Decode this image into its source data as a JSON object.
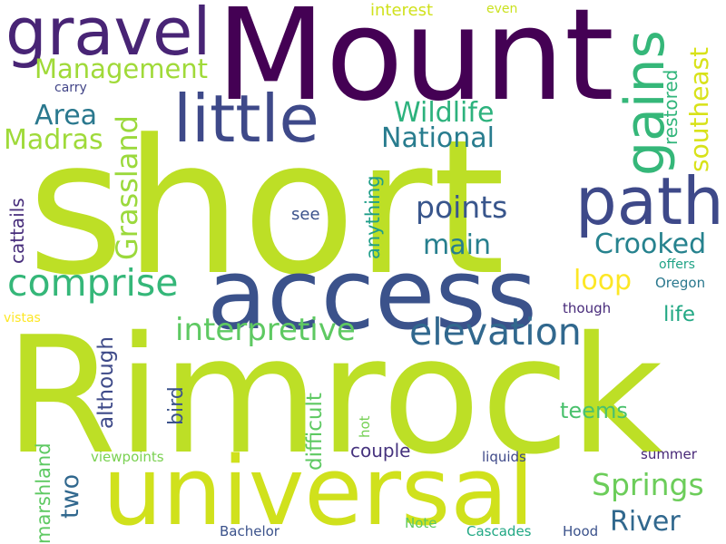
{
  "words": {
    "short": {
      "text": "short",
      "color": "#bddf26"
    },
    "rimrock": {
      "text": "Rimrock",
      "color": "#bddf26"
    },
    "mount": {
      "text": "Mount",
      "color": "#440154"
    },
    "access": {
      "text": "access",
      "color": "#3b528b"
    },
    "universal": {
      "text": "universal",
      "color": "#d0e11c"
    },
    "gravel": {
      "text": "gravel",
      "color": "#482475"
    },
    "little": {
      "text": "little",
      "color": "#3e4989"
    },
    "path": {
      "text": "path",
      "color": "#3e4989"
    },
    "gains": {
      "text": "gains",
      "color": "#35b779"
    },
    "elevation": {
      "text": "elevation",
      "color": "#31688e"
    },
    "comprise": {
      "text": "comprise",
      "color": "#35b779"
    },
    "interpretive": {
      "text": "interpretive",
      "color": "#5ec962"
    },
    "crooked": {
      "text": "Crooked",
      "color": "#26828e"
    },
    "springs": {
      "text": "Springs",
      "color": "#6ccd5a"
    },
    "river": {
      "text": "River",
      "color": "#31688e"
    },
    "management": {
      "text": "Management",
      "color": "#a0da39"
    },
    "wildlife": {
      "text": "Wildlife",
      "color": "#2db27d"
    },
    "national": {
      "text": "National",
      "color": "#287c8e"
    },
    "area": {
      "text": "Area",
      "color": "#2a788e"
    },
    "madras": {
      "text": "Madras",
      "color": "#9fda3a"
    },
    "points": {
      "text": "points",
      "color": "#39568c"
    },
    "main": {
      "text": "main",
      "color": "#277f8e"
    },
    "loop": {
      "text": "loop",
      "color": "#fde725"
    },
    "grassland": {
      "text": "Grassland",
      "color": "#9bd93c"
    },
    "southeast": {
      "text": "southeast",
      "color": "#d8e219"
    },
    "restored": {
      "text": "restored",
      "color": "#31b57b"
    },
    "interest": {
      "text": "interest",
      "color": "#d0e11c"
    },
    "even": {
      "text": "even",
      "color": "#cae11f"
    },
    "carry": {
      "text": "carry",
      "color": "#414487"
    },
    "cattails": {
      "text": "cattails",
      "color": "#472d7b"
    },
    "anything": {
      "text": "anything",
      "color": "#1f9e89"
    },
    "see": {
      "text": "see",
      "color": "#3b528b"
    },
    "although": {
      "text": "although",
      "color": "#3e4a89"
    },
    "bird": {
      "text": "bird",
      "color": "#3b528b"
    },
    "difficult": {
      "text": "difficult",
      "color": "#5ec962"
    },
    "teems": {
      "text": "teems",
      "color": "#4ac16d"
    },
    "life": {
      "text": "life",
      "color": "#22a884"
    },
    "offers": {
      "text": "offers",
      "color": "#20a386"
    },
    "oregon": {
      "text": "Oregon",
      "color": "#2a788e"
    },
    "though": {
      "text": "though",
      "color": "#472a7a"
    },
    "vistas": {
      "text": "vistas",
      "color": "#fde725"
    },
    "two": {
      "text": "two",
      "color": "#31688e"
    },
    "couple": {
      "text": "couple",
      "color": "#46337e"
    },
    "marshland": {
      "text": "marshland",
      "color": "#5ec962"
    },
    "hot": {
      "text": "hot",
      "color": "#75d054"
    },
    "liquids": {
      "text": "liquids",
      "color": "#3e4989"
    },
    "summer": {
      "text": "summer",
      "color": "#482878"
    },
    "viewpoints": {
      "text": "viewpoints",
      "color": "#7ad151"
    },
    "bachelor": {
      "text": "Bachelor",
      "color": "#3b528b"
    },
    "note": {
      "text": "Note",
      "color": "#5ec962"
    },
    "cascades": {
      "text": "Cascades",
      "color": "#22a884"
    },
    "hood": {
      "text": "Hood",
      "color": "#3b528b"
    }
  }
}
